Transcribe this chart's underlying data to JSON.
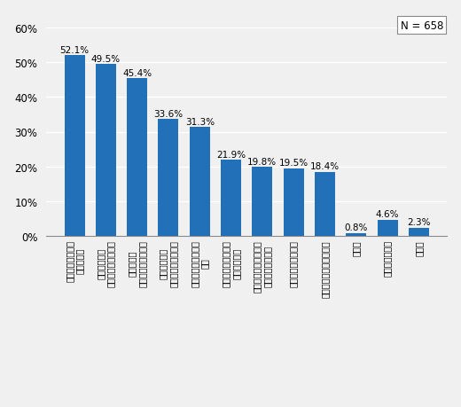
{
  "categories": [
    "定期的に分配金が\n受け取れる",
    "投資ができる\n専門知識がなくても",
    "期待できる\n比較的高い利回りが",
    "面白味がある\n少額でも株式投資の",
    "購入手続きが簡単で\nある",
    "目的に応じて選べる\n種類が豊富で",
    "複利に回る商品がある\n分配金が自動的に",
    "積立て投資ができる",
    "海外投資が手軽にできる",
    "その他",
    "よくわからない",
    "無回答"
  ],
  "values": [
    52.1,
    49.5,
    45.4,
    33.6,
    31.3,
    21.9,
    19.8,
    19.5,
    18.4,
    0.8,
    4.6,
    2.3
  ],
  "bar_color": "#2271B8",
  "background_color": "#f0f0f0",
  "ylim": [
    0,
    60
  ],
  "yticks": [
    0,
    10,
    20,
    30,
    40,
    50,
    60
  ],
  "n_label": "N = 658",
  "value_labels": [
    "52.1%",
    "49.5%",
    "45.4%",
    "33.6%",
    "31.3%",
    "21.9%",
    "19.8%",
    "19.5%",
    "18.4%",
    "0.8%",
    "4.6%",
    "2.3%"
  ],
  "xlabel_fontsize": 7,
  "ylabel_fontsize": 8.5,
  "value_fontsize": 7.5,
  "n_fontsize": 8.5
}
